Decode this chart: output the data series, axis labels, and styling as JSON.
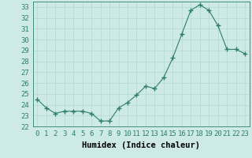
{
  "x": [
    0,
    1,
    2,
    3,
    4,
    5,
    6,
    7,
    8,
    9,
    10,
    11,
    12,
    13,
    14,
    15,
    16,
    17,
    18,
    19,
    20,
    21,
    22,
    23
  ],
  "y": [
    24.5,
    23.7,
    23.2,
    23.4,
    23.4,
    23.4,
    23.2,
    22.5,
    22.5,
    23.7,
    24.2,
    24.9,
    25.7,
    25.5,
    26.5,
    28.3,
    30.5,
    32.7,
    33.2,
    32.7,
    31.3,
    29.1,
    29.1,
    28.7
  ],
  "line_color": "#2e7d6e",
  "marker": "+",
  "marker_size": 4,
  "bg_color": "#ceeae6",
  "grid_color": "#b0d8d2",
  "xlabel": "Humidex (Indice chaleur)",
  "ylabel_ticks": [
    22,
    23,
    24,
    25,
    26,
    27,
    28,
    29,
    30,
    31,
    32,
    33
  ],
  "xlim": [
    -0.5,
    23.5
  ],
  "ylim": [
    22,
    33.5
  ],
  "xticks": [
    0,
    1,
    2,
    3,
    4,
    5,
    6,
    7,
    8,
    9,
    10,
    11,
    12,
    13,
    14,
    15,
    16,
    17,
    18,
    19,
    20,
    21,
    22,
    23
  ],
  "font_size": 6.5,
  "xlabel_fontsize": 7.5,
  "lw": 0.8,
  "marker_lw": 1.0
}
